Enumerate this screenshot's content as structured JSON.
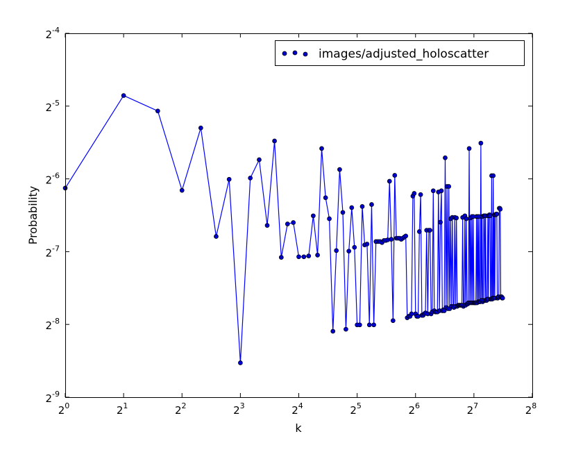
{
  "chart_data": {
    "type": "line",
    "xlabel": "k",
    "ylabel": "Probability",
    "x_scale": "log2",
    "y_scale": "log2",
    "xlim": [
      1,
      256
    ],
    "ylim": [
      0.001953125,
      0.0625
    ],
    "x_ticks": [
      {
        "base": "2",
        "exp": "0",
        "value": 1
      },
      {
        "base": "2",
        "exp": "1",
        "value": 2
      },
      {
        "base": "2",
        "exp": "2",
        "value": 4
      },
      {
        "base": "2",
        "exp": "3",
        "value": 8
      },
      {
        "base": "2",
        "exp": "4",
        "value": 16
      },
      {
        "base": "2",
        "exp": "5",
        "value": 32
      },
      {
        "base": "2",
        "exp": "6",
        "value": 64
      },
      {
        "base": "2",
        "exp": "7",
        "value": 128
      },
      {
        "base": "2",
        "exp": "8",
        "value": 256
      }
    ],
    "y_ticks": [
      {
        "base": "2",
        "exp": "-4",
        "value": 0.0625
      },
      {
        "base": "2",
        "exp": "-5",
        "value": 0.03125
      },
      {
        "base": "2",
        "exp": "-6",
        "value": 0.015625
      },
      {
        "base": "2",
        "exp": "-7",
        "value": 0.0078125
      },
      {
        "base": "2",
        "exp": "-8",
        "value": 0.00390625
      },
      {
        "base": "2",
        "exp": "-9",
        "value": 0.001953125
      }
    ],
    "legend": {
      "position": "top-right",
      "entries": [
        "images/adjusted_holoscatter"
      ]
    },
    "grid": false,
    "colors": {
      "line": "#0000ff",
      "marker_fill": "#0000cc",
      "marker_edge": "#000000",
      "axes": "#000000",
      "background": "#ffffff"
    },
    "series": [
      {
        "name": "images/adjusted_holoscatter",
        "points": [
          [
            1,
            0.01431
          ],
          [
            2,
            0.03456
          ],
          [
            3,
            0.02983
          ],
          [
            4,
            0.01401
          ],
          [
            5,
            0.02539
          ],
          [
            6,
            0.00903
          ],
          [
            7,
            0.01556
          ],
          [
            8,
            0.00271
          ],
          [
            9,
            0.01575
          ],
          [
            10,
            0.01875
          ],
          [
            11,
            0.01003
          ],
          [
            12,
            0.02242
          ],
          [
            13,
            0.0074
          ],
          [
            14,
            0.01017
          ],
          [
            15,
            0.01031
          ],
          [
            16,
            0.00744
          ],
          [
            17,
            0.00744
          ],
          [
            18,
            0.0075
          ],
          [
            19,
            0.01099
          ],
          [
            20,
            0.00756
          ],
          [
            21,
            0.02086
          ],
          [
            22,
            0.01306
          ],
          [
            23,
            0.01069
          ],
          [
            24,
            0.00366
          ],
          [
            25,
            0.00789
          ],
          [
            26,
            0.01708
          ],
          [
            27,
            0.01135
          ],
          [
            28,
            0.00373
          ],
          [
            29,
            0.00785
          ],
          [
            30,
            0.01188
          ],
          [
            31,
            0.00814
          ],
          [
            32,
            0.00389
          ],
          [
            33,
            0.00389
          ],
          [
            34,
            0.01201
          ],
          [
            35,
            0.00833
          ],
          [
            36,
            0.0084
          ],
          [
            37,
            0.00389
          ],
          [
            38,
            0.01224
          ],
          [
            39,
            0.00389
          ],
          [
            40,
            0.0086
          ],
          [
            41,
            0.0086
          ],
          [
            42,
            0.0086
          ],
          [
            43,
            0.00852
          ],
          [
            44,
            0.00869
          ],
          [
            45,
            0.00869
          ],
          [
            46,
            0.00874
          ],
          [
            47,
            0.01528
          ],
          [
            48,
            0.00879
          ],
          [
            49,
            0.00405
          ],
          [
            50,
            0.01616
          ],
          [
            51,
            0.00888
          ],
          [
            52,
            0.00888
          ],
          [
            53,
            0.00888
          ],
          [
            54,
            0.00879
          ],
          [
            55,
            0.00888
          ],
          [
            56,
            0.00898
          ],
          [
            57,
            0.00907
          ],
          [
            58,
            0.00416
          ],
          [
            59,
            0.00422
          ],
          [
            60,
            0.00422
          ],
          [
            61,
            0.00432
          ],
          [
            62,
            0.01326
          ],
          [
            63,
            0.01361
          ],
          [
            64,
            0.00432
          ],
          [
            65,
            0.00422
          ],
          [
            66,
            0.00422
          ],
          [
            67,
            0.00946
          ],
          [
            68,
            0.01345
          ],
          [
            69,
            0.00426
          ],
          [
            70,
            0.00426
          ],
          [
            71,
            0.00432
          ],
          [
            72,
            0.00436
          ],
          [
            73,
            0.00958
          ],
          [
            74,
            0.00432
          ],
          [
            75,
            0.00958
          ],
          [
            76,
            0.00958
          ],
          [
            77,
            0.00432
          ],
          [
            78,
            0.0044
          ],
          [
            79,
            0.01395
          ],
          [
            80,
            0.00445
          ],
          [
            81,
            0.0044
          ],
          [
            82,
            0.0044
          ],
          [
            83,
            0.0044
          ],
          [
            84,
            0.01379
          ],
          [
            85,
            0.00445
          ],
          [
            86,
            0.01034
          ],
          [
            87,
            0.01395
          ],
          [
            88,
            0.00445
          ],
          [
            89,
            0.00449
          ],
          [
            90,
            0.00445
          ],
          [
            91,
            0.0191
          ],
          [
            92,
            0.00459
          ],
          [
            93,
            0.01454
          ],
          [
            94,
            0.00454
          ],
          [
            95,
            0.01454
          ],
          [
            96,
            0.00454
          ],
          [
            97,
            0.01069
          ],
          [
            98,
            0.00464
          ],
          [
            99,
            0.01082
          ],
          [
            100,
            0.00464
          ],
          [
            101,
            0.00459
          ],
          [
            102,
            0.01082
          ],
          [
            103,
            0.00464
          ],
          [
            104,
            0.01077
          ],
          [
            105,
            0.00464
          ],
          [
            106,
            0.00469
          ],
          [
            107,
            0.00469
          ],
          [
            108,
            0.00469
          ],
          [
            109,
            0.00469
          ],
          [
            110,
            0.00469
          ],
          [
            111,
            0.00469
          ],
          [
            112,
            0.01082
          ],
          [
            113,
            0.00464
          ],
          [
            114,
            0.00469
          ],
          [
            115,
            0.01099
          ],
          [
            116,
            0.00469
          ],
          [
            117,
            0.01069
          ],
          [
            118,
            0.00475
          ],
          [
            119,
            0.00475
          ],
          [
            120,
            0.0048
          ],
          [
            121,
            0.02086
          ],
          [
            122,
            0.0048
          ],
          [
            123,
            0.01077
          ],
          [
            124,
            0.0048
          ],
          [
            125,
            0.01091
          ],
          [
            126,
            0.0048
          ],
          [
            127,
            0.01091
          ],
          [
            128,
            0.0048
          ],
          [
            129,
            0.0048
          ],
          [
            130,
            0.0048
          ],
          [
            131,
            0.0048
          ],
          [
            132,
            0.01091
          ],
          [
            133,
            0.0048
          ],
          [
            134,
            0.01091
          ],
          [
            135,
            0.00485
          ],
          [
            136,
            0.01091
          ],
          [
            137,
            0.00485
          ],
          [
            138,
            0.00485
          ],
          [
            139,
            0.02196
          ],
          [
            140,
            0.00491
          ],
          [
            141,
            0.01091
          ],
          [
            142,
            0.00485
          ],
          [
            143,
            0.00491
          ],
          [
            144,
            0.01099
          ],
          [
            145,
            0.01099
          ],
          [
            146,
            0.00491
          ],
          [
            147,
            0.01099
          ],
          [
            148,
            0.00491
          ],
          [
            149,
            0.00491
          ],
          [
            150,
            0.00497
          ],
          [
            151,
            0.01099
          ],
          [
            152,
            0.00497
          ],
          [
            153,
            0.01099
          ],
          [
            154,
            0.0111
          ],
          [
            155,
            0.01099
          ],
          [
            156,
            0.00497
          ],
          [
            157,
            0.00497
          ],
          [
            158,
            0.01611
          ],
          [
            159,
            0.00497
          ],
          [
            160,
            0.00502
          ],
          [
            161,
            0.01611
          ],
          [
            162,
            0.00502
          ],
          [
            163,
            0.0111
          ],
          [
            164,
            0.00502
          ],
          [
            165,
            0.0111
          ],
          [
            166,
            0.0111
          ],
          [
            167,
            0.01118
          ],
          [
            168,
            0.01118
          ],
          [
            169,
            0.00502
          ],
          [
            170,
            0.00502
          ],
          [
            171,
            0.00508
          ],
          [
            172,
            0.00508
          ],
          [
            173,
            0.01181
          ],
          [
            174,
            0.01181
          ],
          [
            175,
            0.01171
          ],
          [
            176,
            0.00508
          ],
          [
            177,
            0.00508
          ],
          [
            178,
            0.00508
          ],
          [
            179,
            0.00502
          ],
          [
            180,
            0.00502
          ]
        ]
      }
    ]
  }
}
